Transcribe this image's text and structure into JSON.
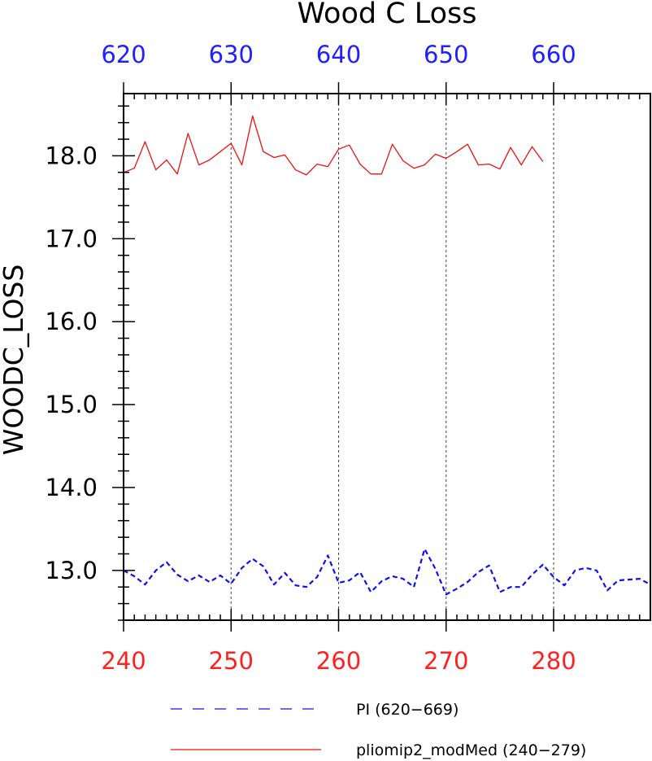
{
  "chart_data": {
    "type": "line",
    "title": "Wood C Loss",
    "ylabel": "WOODC_LOSS",
    "xlabel": "",
    "bottom_axis": {
      "range": [
        240,
        289
      ],
      "ticks": [
        "240",
        "250",
        "260",
        "270",
        "280"
      ],
      "color": "#ff2020"
    },
    "top_axis": {
      "range": [
        620,
        669
      ],
      "ticks": [
        "620",
        "630",
        "640",
        "650",
        "660"
      ],
      "color": "#2020ff"
    },
    "ylim": [
      12.4,
      18.75
    ],
    "y_ticks": [
      "13.0",
      "14.0",
      "15.0",
      "16.0",
      "17.0",
      "18.0"
    ],
    "grid": "vertical dashed at major x ticks",
    "legend_placement": "bottom",
    "series": [
      {
        "name": "PI (620-669)",
        "color": "#1010ee",
        "style": "dashed",
        "axis": "top",
        "x": [
          620,
          621,
          622,
          623,
          624,
          625,
          626,
          627,
          628,
          629,
          630,
          631,
          632,
          633,
          634,
          635,
          636,
          637,
          638,
          639,
          640,
          641,
          642,
          643,
          644,
          645,
          646,
          647,
          648,
          649,
          650,
          651,
          652,
          653,
          654,
          655,
          656,
          657,
          658,
          659,
          660,
          661,
          662,
          663,
          664,
          665,
          666,
          667,
          668,
          669
        ],
        "values": [
          13.0,
          12.93,
          12.83,
          13.0,
          13.1,
          12.95,
          12.87,
          12.94,
          12.86,
          12.94,
          12.84,
          13.03,
          13.14,
          13.05,
          12.83,
          12.97,
          12.82,
          12.8,
          12.92,
          13.18,
          12.85,
          12.88,
          12.98,
          12.74,
          12.87,
          12.93,
          12.9,
          12.8,
          13.26,
          13.02,
          12.71,
          12.78,
          12.86,
          12.98,
          13.06,
          12.74,
          12.8,
          12.8,
          12.95,
          13.07,
          12.92,
          12.82,
          13.0,
          13.03,
          13.0,
          12.76,
          12.88,
          12.89,
          12.9,
          12.83
        ]
      },
      {
        "name": "pliomip2_modMed (240-279)",
        "color": "#ee1010",
        "style": "solid",
        "axis": "bottom",
        "x": [
          240,
          241,
          242,
          243,
          244,
          245,
          246,
          247,
          248,
          249,
          250,
          251,
          252,
          253,
          254,
          255,
          256,
          257,
          258,
          259,
          260,
          261,
          262,
          263,
          264,
          265,
          266,
          267,
          268,
          269,
          270,
          271,
          272,
          273,
          274,
          275,
          276,
          277,
          278,
          279
        ],
        "values": [
          17.8,
          17.85,
          18.17,
          17.83,
          17.95,
          17.78,
          18.27,
          17.89,
          17.95,
          18.05,
          18.15,
          17.89,
          18.48,
          18.05,
          17.98,
          18.01,
          17.83,
          17.77,
          17.9,
          17.87,
          18.08,
          18.13,
          17.9,
          17.78,
          17.78,
          18.14,
          17.94,
          17.85,
          17.89,
          18.02,
          17.97,
          18.05,
          18.14,
          17.89,
          17.9,
          17.84,
          18.1,
          17.89,
          18.11,
          17.93
        ]
      }
    ],
    "legend": [
      {
        "label": "PI (620−669)",
        "color": "#1010ee",
        "style": "dashed"
      },
      {
        "label": "pliomip2_modMed (240−279)",
        "color": "#ee1010",
        "style": "solid"
      }
    ]
  }
}
